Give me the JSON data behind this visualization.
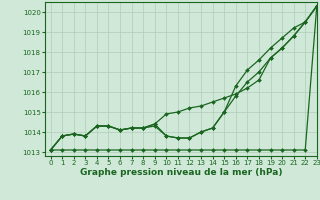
{
  "title": "Graphe pression niveau de la mer (hPa)",
  "background_color": "#d0e8d8",
  "grid_color": "#b0ccb8",
  "line_color": "#1a6620",
  "xlim": [
    -0.5,
    23
  ],
  "ylim": [
    1012.8,
    1020.5
  ],
  "x_ticks": [
    0,
    1,
    2,
    3,
    4,
    5,
    6,
    7,
    8,
    9,
    10,
    11,
    12,
    13,
    14,
    15,
    16,
    17,
    18,
    19,
    20,
    21,
    22,
    23
  ],
  "y_ticks": [
    1013,
    1014,
    1015,
    1016,
    1017,
    1018,
    1019,
    1020
  ],
  "series": [
    [
      1013.1,
      1013.8,
      1013.9,
      1013.8,
      1014.3,
      1014.3,
      1014.1,
      1014.2,
      1014.2,
      1014.3,
      1013.8,
      1013.7,
      1013.7,
      1014.0,
      1014.2,
      1015.0,
      1015.8,
      1016.5,
      1017.0,
      1017.7,
      1018.2,
      1018.8,
      1019.5,
      1020.3
    ],
    [
      1013.1,
      1013.8,
      1013.9,
      1013.8,
      1014.3,
      1014.3,
      1014.1,
      1014.2,
      1014.2,
      1014.4,
      1013.8,
      1013.7,
      1013.7,
      1014.0,
      1014.2,
      1015.0,
      1016.3,
      1017.1,
      1017.6,
      1018.2,
      1018.7,
      1019.2,
      1019.5,
      1020.3
    ],
    [
      1013.1,
      1013.8,
      1013.9,
      1013.8,
      1014.3,
      1014.3,
      1014.1,
      1014.2,
      1014.2,
      1014.4,
      1014.9,
      1015.0,
      1015.2,
      1015.3,
      1015.5,
      1015.7,
      1015.9,
      1016.2,
      1016.6,
      1017.7,
      1018.2,
      1018.8,
      1019.5,
      1020.3
    ],
    [
      1013.1,
      1013.1,
      1013.1,
      1013.1,
      1013.1,
      1013.1,
      1013.1,
      1013.1,
      1013.1,
      1013.1,
      1013.1,
      1013.1,
      1013.1,
      1013.1,
      1013.1,
      1013.1,
      1013.1,
      1013.1,
      1013.1,
      1013.1,
      1013.1,
      1013.1,
      1013.1,
      1020.3
    ]
  ],
  "marker": "D",
  "markersize": 2.0,
  "linewidth": 0.9,
  "tick_fontsize": 5.0,
  "label_fontsize": 6.5
}
